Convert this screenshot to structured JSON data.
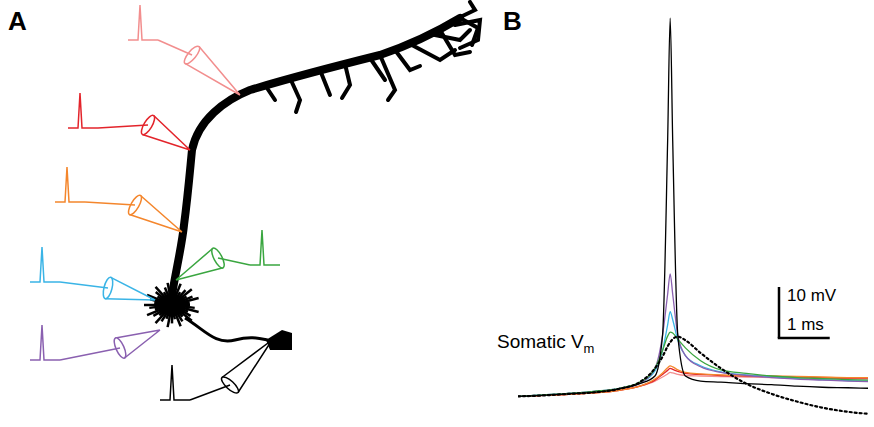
{
  "panel_labels": [
    "A",
    "B"
  ],
  "chart_data": {
    "type": "line",
    "tick_labels": false,
    "xlim": [
      0,
      6.9
    ],
    "ylim": [
      -5,
      76
    ],
    "x": [
      0,
      0.5,
      1,
      1.5,
      2,
      2.4,
      2.7,
      2.85,
      2.95,
      3.0,
      3.05,
      3.15,
      3.3,
      3.6,
      4,
      4.5,
      5,
      5.5,
      6,
      6.5,
      6.9
    ],
    "series": [
      {
        "color": "#f28e8e",
        "line_style": "solid",
        "values": [
          0,
          0.2,
          0.4,
          0.7,
          1.2,
          2,
          3,
          3.8,
          4.4,
          4.7,
          4.6,
          4.3,
          4.1,
          4,
          3.9,
          3.8,
          3.7,
          3.6,
          3.5,
          3.5,
          3.4
        ]
      },
      {
        "color": "#e3242b",
        "line_style": "solid",
        "values": [
          0,
          0.2,
          0.4,
          0.7,
          1.2,
          2,
          3.2,
          4.3,
          5.1,
          5.5,
          5.3,
          4.9,
          4.5,
          4.3,
          4.1,
          4,
          3.9,
          3.8,
          3.7,
          3.6,
          3.6
        ]
      },
      {
        "color": "#f4862c",
        "line_style": "solid",
        "values": [
          0,
          0.2,
          0.4,
          0.7,
          1.2,
          2,
          3.4,
          4.6,
          5.6,
          6,
          5.8,
          5.2,
          4.7,
          4.4,
          4.2,
          4.1,
          4,
          3.9,
          3.8,
          3.7,
          3.7
        ]
      },
      {
        "color": "#3ab4e6",
        "line_style": "solid",
        "values": [
          0,
          0.3,
          0.6,
          1,
          1.6,
          2.6,
          5,
          9,
          14,
          16.6,
          15,
          11,
          8,
          6,
          4.8,
          4.2,
          3.8,
          3.5,
          3.3,
          3.1,
          3
        ]
      },
      {
        "color": "#8a60b0",
        "line_style": "solid",
        "values": [
          0,
          0.3,
          0.6,
          1,
          1.6,
          2.6,
          5.5,
          12,
          20,
          24,
          20,
          12,
          8,
          5.8,
          4.7,
          4.1,
          3.7,
          3.4,
          3.2,
          3,
          2.9
        ]
      },
      {
        "color": "#3aa640",
        "line_style": "solid",
        "values": [
          0,
          0.3,
          0.6,
          1,
          1.6,
          2.8,
          5.5,
          9,
          11.8,
          12.6,
          12.4,
          11.2,
          9.5,
          7,
          5.2,
          4.5,
          4,
          3.7,
          3.5,
          3.3,
          3.2
        ]
      },
      {
        "color": "#000000",
        "line_style": "solid",
        "values": [
          0,
          0.2,
          0.5,
          0.8,
          1.5,
          2.5,
          4,
          12,
          50,
          74,
          50,
          12,
          4,
          3,
          2.8,
          2.5,
          2.3,
          2,
          1.8,
          1.7,
          1.6
        ]
      },
      {
        "color": "#000000",
        "line_style": "dotted",
        "values": [
          0,
          0.2,
          0.5,
          0.8,
          1.5,
          2.8,
          5.5,
          7.8,
          9.8,
          10.6,
          11.2,
          11.7,
          11,
          8.5,
          5.5,
          2.5,
          0.5,
          -1,
          -2.2,
          -3,
          -3.4
        ]
      }
    ],
    "annotations": [
      {
        "text": "Somatic V",
        "subscript": "m"
      }
    ],
    "scale_bar": {
      "y": 10,
      "y_label": "10 mV",
      "x": 1,
      "x_label": "1 ms"
    }
  }
}
